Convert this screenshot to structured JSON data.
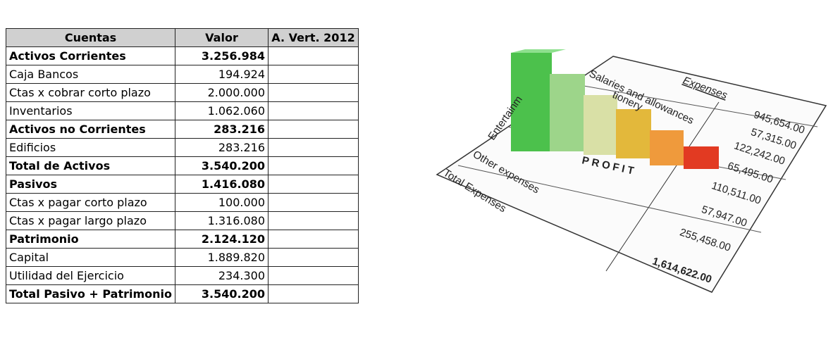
{
  "table": {
    "header": [
      "Cuentas",
      "Valor",
      "A. Vert. 2012"
    ],
    "rows": [
      {
        "cells": [
          "Activos Corrientes",
          "3.256.984"
        ],
        "bold": true
      },
      {
        "cells": [
          "Caja Bancos",
          "194.924"
        ],
        "bold": false
      },
      {
        "cells": [
          "Ctas x cobrar corto plazo",
          "2.000.000"
        ],
        "bold": false
      },
      {
        "cells": [
          "Inventarios",
          "1.062.060"
        ],
        "bold": false
      },
      {
        "cells": [
          "Activos no Corrientes",
          "283.216"
        ],
        "bold": true
      },
      {
        "cells": [
          "Edificios",
          "283.216"
        ],
        "bold": false
      },
      {
        "cells": [
          "Total de Activos",
          "3.540.200"
        ],
        "bold": true
      },
      {
        "cells": [
          "Pasivos",
          "1.416.080"
        ],
        "bold": true
      },
      {
        "cells": [
          "Ctas x pagar corto plazo",
          "100.000"
        ],
        "bold": false
      },
      {
        "cells": [
          "Ctas x pagar largo plazo",
          "1.316.080"
        ],
        "bold": false
      },
      {
        "cells": [
          "Patrimonio",
          "2.124.120"
        ],
        "bold": true
      },
      {
        "cells": [
          "Capital",
          "1.889.820"
        ],
        "bold": false
      },
      {
        "cells": [
          "Utilidad del Ejercicio",
          "234.300"
        ],
        "bold": false
      },
      {
        "cells": [
          "Total Pasivo + Patrimonio",
          "3.540.200"
        ],
        "bold": true
      }
    ]
  },
  "illustration": {
    "heading": "Expenses",
    "row_label": "Salaries and allowances",
    "row_label_2": "tionery",
    "row_label_3": "Entertainm",
    "row_label_4": "Other expenses",
    "total_label": "Total Expenses",
    "profit": "PROFIT",
    "amounts": [
      "945,654.00",
      "57,315.00",
      "122,242.00",
      "65,495.00",
      "110,511.00",
      "57,947.00",
      "255,458.00"
    ],
    "total": "1,614,622.00"
  }
}
